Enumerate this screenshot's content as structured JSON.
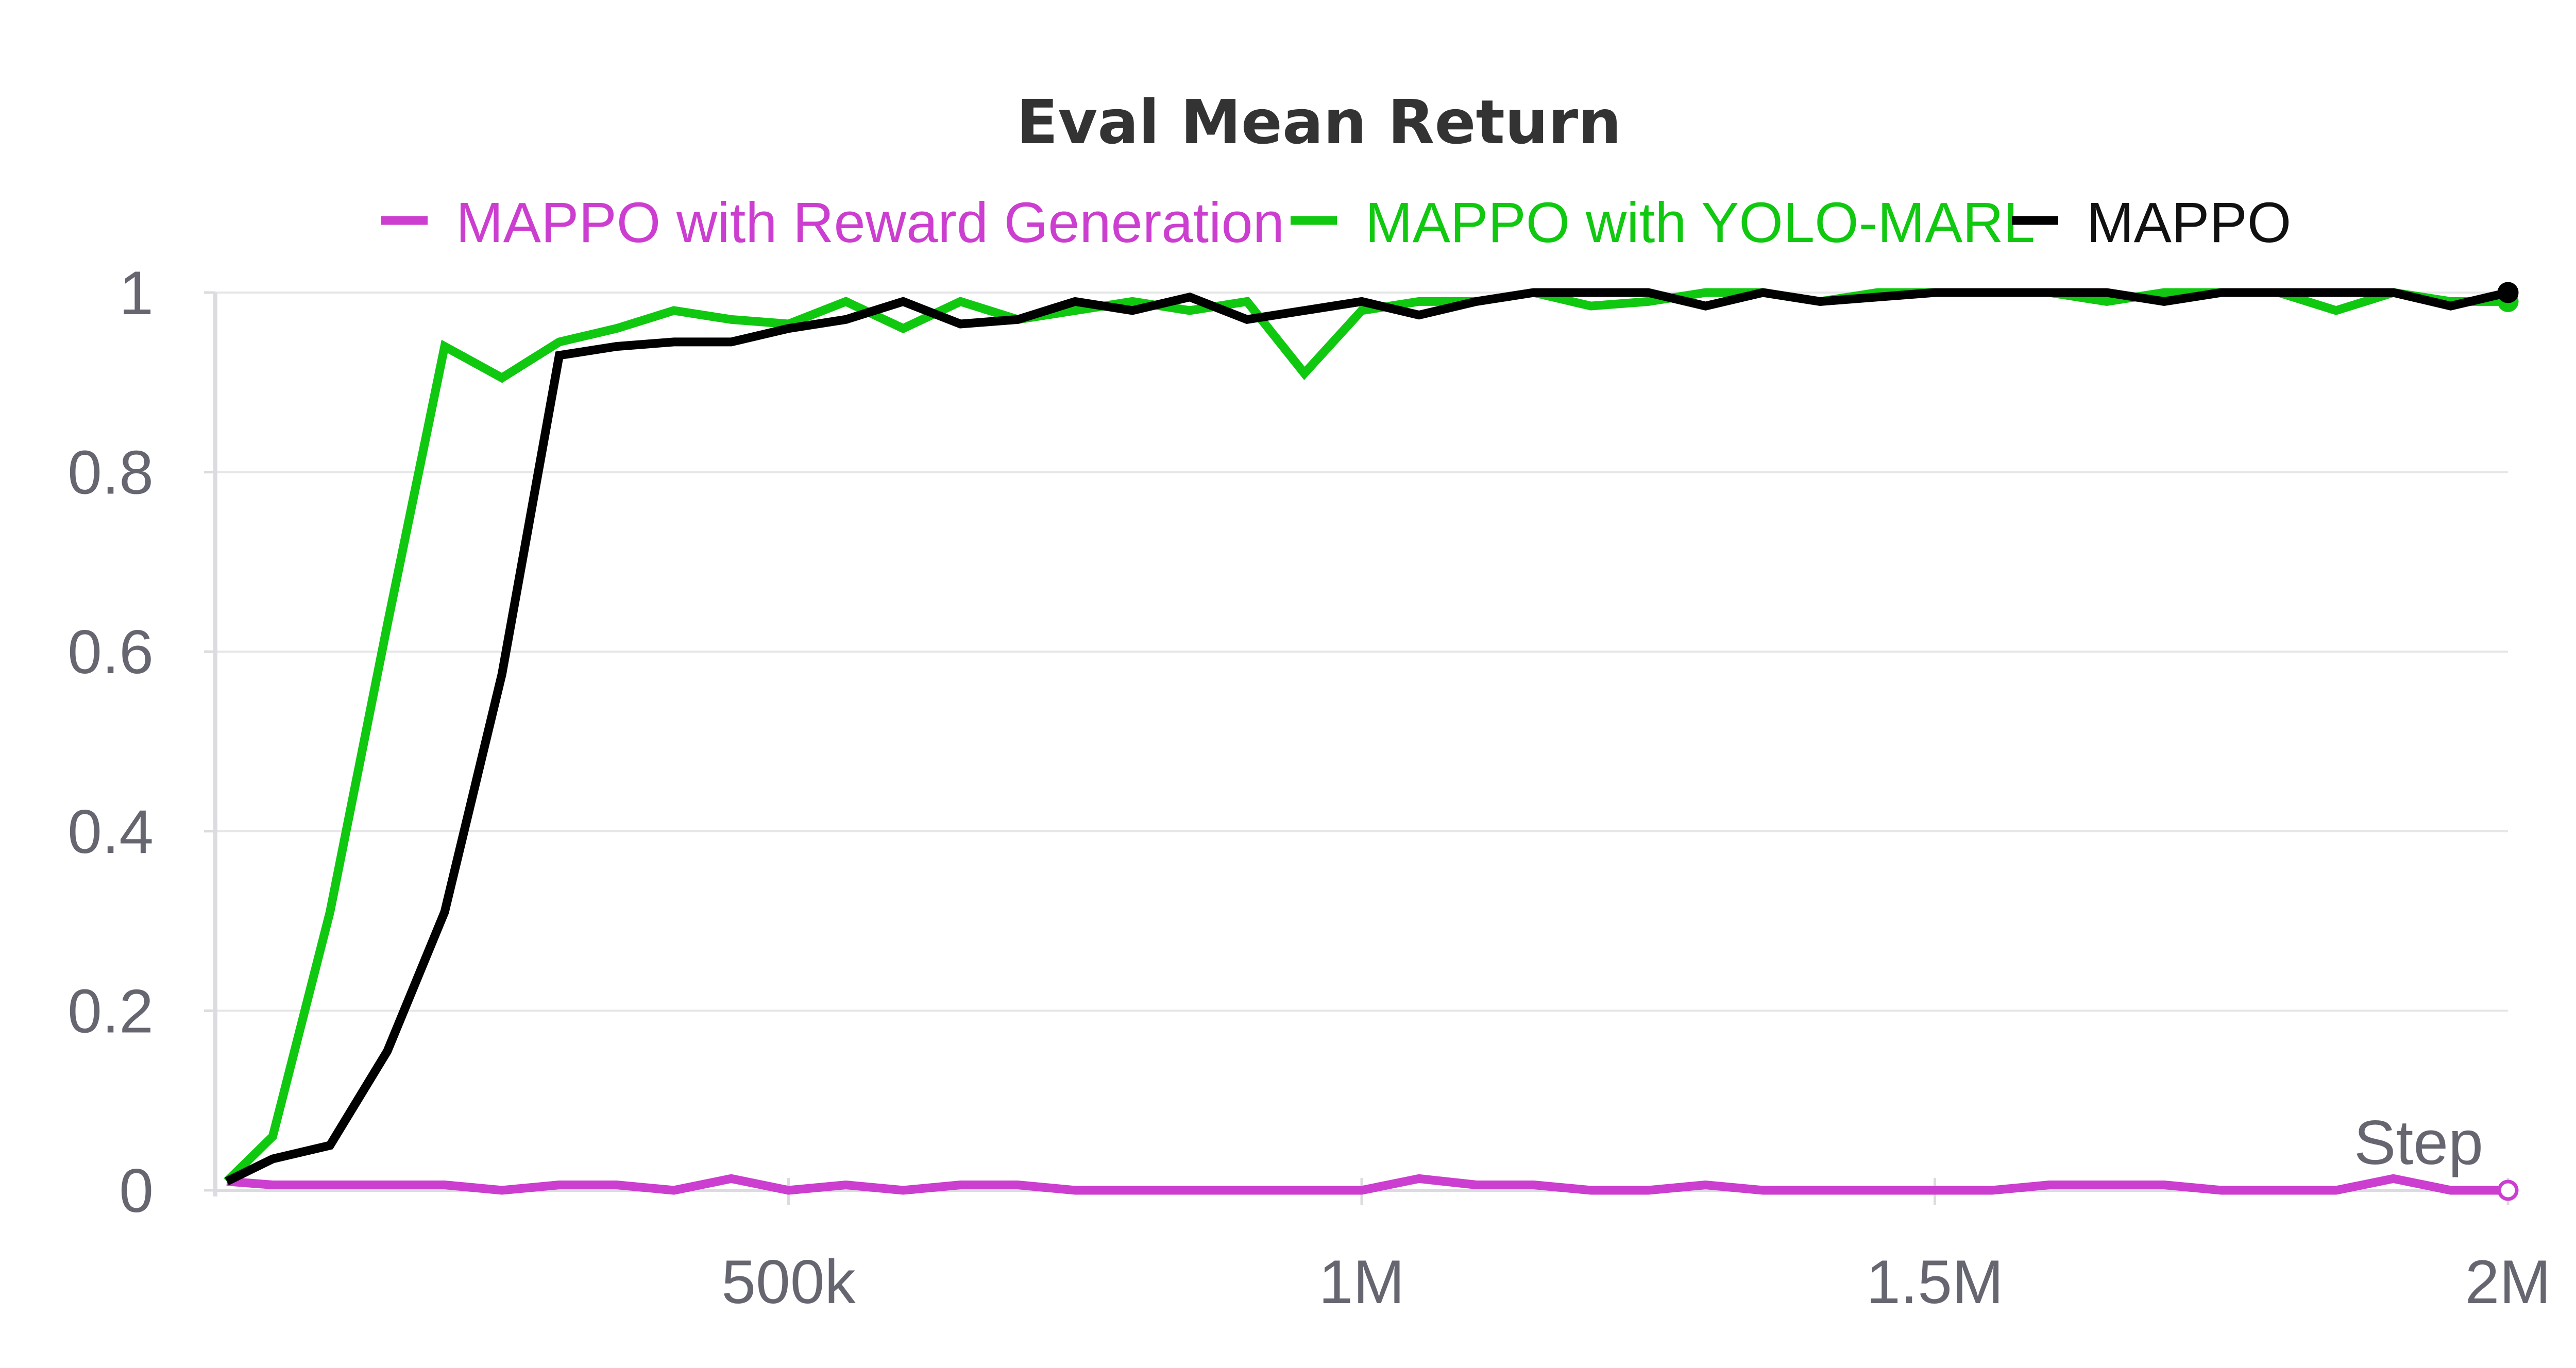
{
  "chart_data": {
    "type": "line",
    "title": "Eval Mean Return",
    "xlabel": "Step",
    "ylabel": "",
    "xlim": [
      0,
      2000000
    ],
    "ylim": [
      0,
      1
    ],
    "grid": true,
    "legend_position": "top",
    "x_ticks": [
      {
        "value": 500000,
        "label": "500k"
      },
      {
        "value": 1000000,
        "label": "1M"
      },
      {
        "value": 1500000,
        "label": "1.5M"
      },
      {
        "value": 2000000,
        "label": "2M"
      }
    ],
    "y_ticks": [
      {
        "value": 0,
        "label": "0"
      },
      {
        "value": 0.2,
        "label": "0.2"
      },
      {
        "value": 0.4,
        "label": "0.4"
      },
      {
        "value": 0.6,
        "label": "0.6"
      },
      {
        "value": 0.8,
        "label": "0.8"
      },
      {
        "value": 1,
        "label": "1"
      }
    ],
    "x": [
      10000,
      50000,
      100000,
      150000,
      200000,
      250000,
      300000,
      350000,
      400000,
      450000,
      500000,
      550000,
      600000,
      650000,
      700000,
      750000,
      800000,
      850000,
      900000,
      950000,
      1000000,
      1050000,
      1100000,
      1150000,
      1200000,
      1250000,
      1300000,
      1350000,
      1400000,
      1450000,
      1500000,
      1550000,
      1600000,
      1650000,
      1700000,
      1750000,
      1800000,
      1850000,
      1900000,
      1950000,
      2000000
    ],
    "series": [
      {
        "name": "MAPPO with Reward Generation",
        "color": "#cc3ecf",
        "values": [
          0.01,
          0.006,
          0.006,
          0.006,
          0.006,
          0.0,
          0.006,
          0.006,
          0.0,
          0.013,
          0.0,
          0.006,
          0.0,
          0.006,
          0.006,
          0.0,
          0.0,
          0.0,
          0.0,
          0.0,
          0.0,
          0.013,
          0.006,
          0.006,
          0.0,
          0.0,
          0.006,
          0.0,
          0.0,
          0.0,
          0.0,
          0.0,
          0.006,
          0.006,
          0.006,
          0.0,
          0.0,
          0.0,
          0.013,
          0.0,
          0.0
        ]
      },
      {
        "name": "MAPPO with YOLO-MARL",
        "color": "#10c810",
        "values": [
          0.01,
          0.06,
          0.31,
          0.63,
          0.94,
          0.905,
          0.945,
          0.96,
          0.98,
          0.97,
          0.965,
          0.99,
          0.96,
          0.99,
          0.97,
          0.98,
          0.99,
          0.98,
          0.99,
          0.91,
          0.98,
          0.99,
          0.99,
          1.0,
          0.985,
          0.99,
          1.0,
          1.0,
          0.99,
          1.0,
          1.0,
          1.0,
          1.0,
          0.99,
          1.0,
          1.0,
          1.0,
          0.98,
          1.0,
          0.99,
          0.99
        ]
      },
      {
        "name": "MAPPO",
        "color": "#000000",
        "values": [
          0.01,
          0.035,
          0.05,
          0.155,
          0.31,
          0.575,
          0.93,
          0.94,
          0.945,
          0.945,
          0.96,
          0.97,
          0.99,
          0.965,
          0.97,
          0.99,
          0.98,
          0.995,
          0.97,
          0.98,
          0.99,
          0.975,
          0.99,
          1.0,
          1.0,
          1.0,
          0.985,
          1.0,
          0.99,
          0.995,
          1.0,
          1.0,
          1.0,
          1.0,
          0.99,
          1.0,
          1.0,
          1.0,
          1.0,
          0.985,
          1.0
        ]
      }
    ]
  }
}
